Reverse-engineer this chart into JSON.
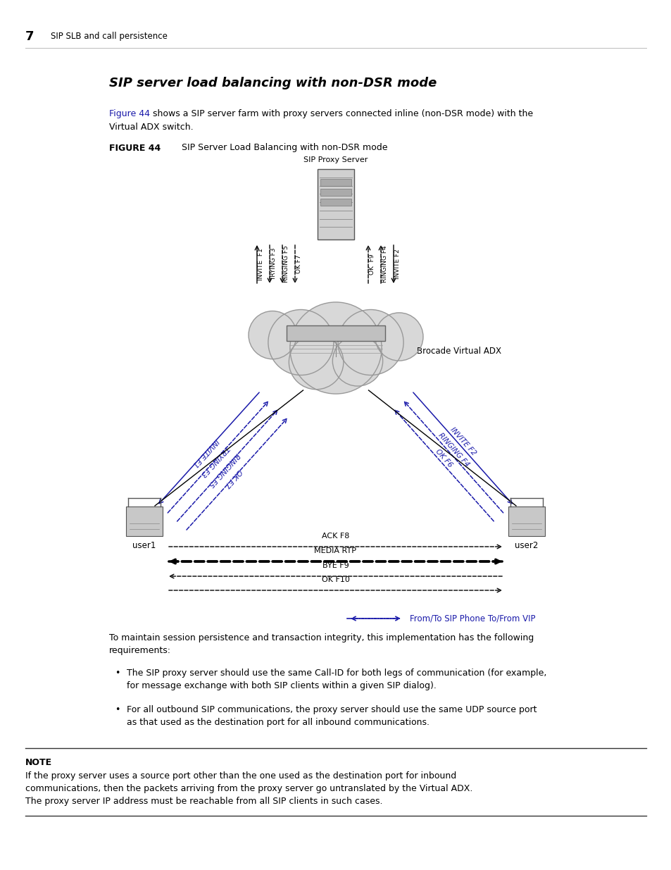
{
  "page_number": "7",
  "chapter_title": "SIP SLB and call persistence",
  "section_title": "SIP server load balancing with non-DSR mode",
  "figure_label": "FIGURE 44",
  "figure_caption": "SIP Server Load Balancing with non-DSR mode",
  "figure44_link": "Figure 44",
  "intro_line1": " shows a SIP server farm with proxy servers connected inline (non-DSR mode) with the",
  "intro_line2": "Virtual ADX switch.",
  "legend_text": "From/To SIP Phone To/From VIP",
  "para1_line1": "To maintain session persistence and transaction integrity, this implementation has the following",
  "para1_line2": "requirements:",
  "bullet1_line1": "The SIP proxy server should use the same Call-ID for both legs of communication (for example,",
  "bullet1_line2": "for message exchange with both SIP clients within a given SIP dialog).",
  "bullet2_line1": "For all outbound SIP communications, the proxy server should use the same UDP source port",
  "bullet2_line2": "as that used as the destination port for all inbound communications.",
  "note_label": "NOTE",
  "note_line1": "If the proxy server uses a source port other than the one used as the destination port for inbound",
  "note_line2": "communications, then the packets arriving from the proxy server go untranslated by the Virtual ADX.",
  "note_line3": "The proxy server IP address must be reachable from all SIP clients in such cases.",
  "bg_color": "#ffffff",
  "text_color": "#000000",
  "blue_color": "#1a1aaa",
  "arrow_black": "#000000",
  "gray_cloud": "#d8d8d8",
  "gray_edge": "#999999"
}
